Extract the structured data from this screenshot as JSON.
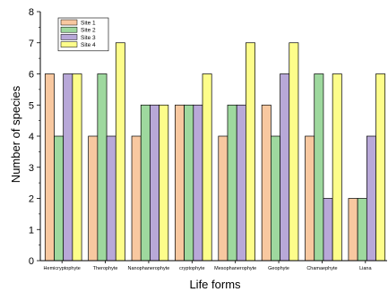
{
  "chart_data": {
    "type": "bar",
    "title": "",
    "xlabel": "Life forms",
    "ylabel": "Number of species",
    "ylim": [
      0,
      8
    ],
    "yticks": [
      0,
      1,
      2,
      3,
      4,
      5,
      6,
      7,
      8
    ],
    "categories": [
      "Hemicryptophyte",
      "Therophyte",
      "Nanophanerophyte",
      "cryptophyte",
      "Mesophanerophyte",
      "Geophyte",
      "Chamaephyte",
      "Liana"
    ],
    "series": [
      {
        "name": "Site 1",
        "color": "#f8c8a0",
        "values": [
          6,
          4,
          4,
          5,
          4,
          5,
          4,
          2
        ]
      },
      {
        "name": "Site 2",
        "color": "#9ed89e",
        "values": [
          4,
          6,
          5,
          5,
          5,
          4,
          6,
          2
        ]
      },
      {
        "name": "Site 3",
        "color": "#b8a8d8",
        "values": [
          6,
          4,
          5,
          5,
          5,
          6,
          2,
          4
        ]
      },
      {
        "name": "Site 4",
        "color": "#fdfd8a",
        "values": [
          6,
          7,
          5,
          6,
          7,
          7,
          6,
          6
        ]
      }
    ],
    "legend_position": "top-left",
    "grid": false
  }
}
